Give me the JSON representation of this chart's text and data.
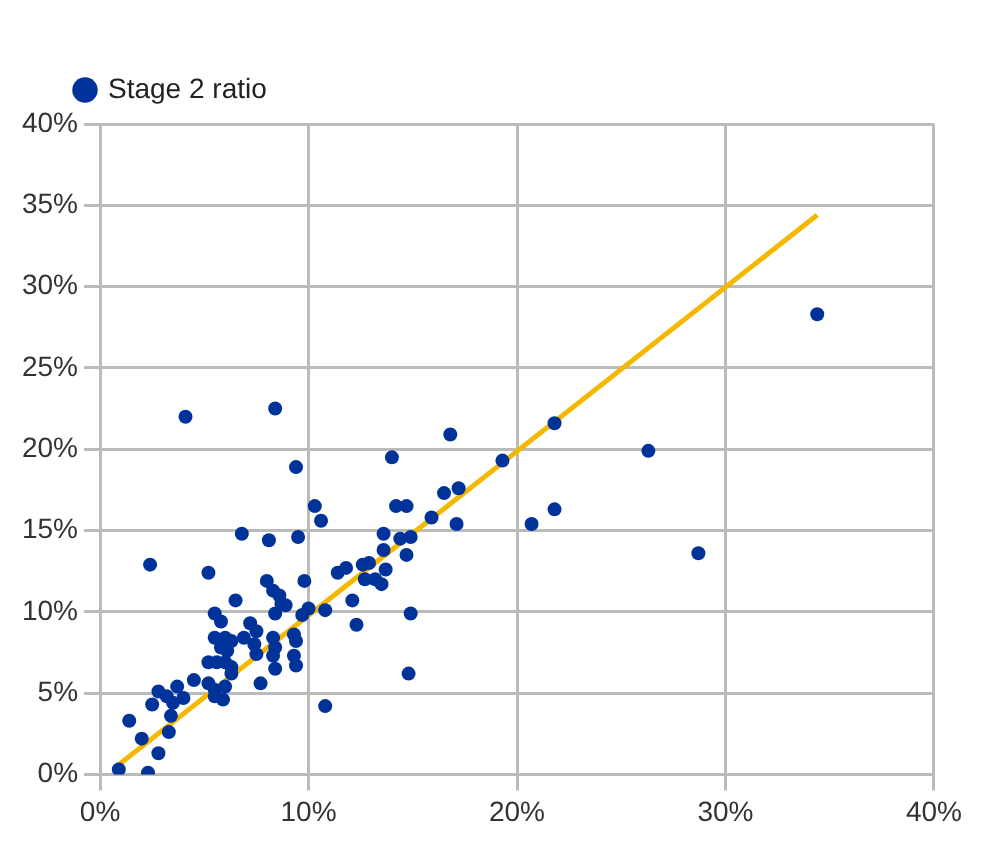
{
  "chart_data": {
    "type": "scatter",
    "legend": "top left",
    "grid": true,
    "marker": "circle",
    "xlim": [
      0,
      40
    ],
    "xticks": [
      {
        "value": 0,
        "label": "0%"
      },
      {
        "value": 10,
        "label": "10%"
      },
      {
        "value": 20,
        "label": "20%"
      },
      {
        "value": 30,
        "label": "30%"
      },
      {
        "value": 40,
        "label": "40%"
      }
    ],
    "ylim": [
      0,
      40
    ],
    "yticks": [
      {
        "value": 0,
        "label": "0%"
      },
      {
        "value": 5,
        "label": "5%"
      },
      {
        "value": 10,
        "label": "10%"
      },
      {
        "value": 15,
        "label": "15%"
      },
      {
        "value": 20,
        "label": "20%"
      },
      {
        "value": 25,
        "label": "25%"
      },
      {
        "value": 30,
        "label": "30%"
      },
      {
        "value": 35,
        "label": "35%"
      },
      {
        "value": 40,
        "label": "40%"
      }
    ],
    "series": [
      {
        "name": "Stage 2 ratio",
        "color": "#003399",
        "x": [
          4.1,
          8.4,
          9.4,
          14.0,
          10.3,
          10.6,
          14.2,
          14.7,
          15.9,
          6.8,
          8.1,
          9.5,
          13.6,
          14.4,
          14.9,
          2.4,
          5.2,
          14.7,
          13.6,
          8.0,
          9.8,
          8.3,
          8.6,
          6.5,
          8.7,
          8.9,
          5.5,
          5.8,
          8.4,
          9.7,
          10.0,
          10.8,
          11.4,
          11.8,
          12.1,
          12.3,
          12.6,
          12.9,
          12.7,
          13.2,
          13.5,
          13.7,
          14.9,
          14.8,
          10.8,
          7.2,
          7.5,
          5.5,
          6.0,
          6.3,
          5.8,
          6.1,
          6.9,
          7.4,
          7.5,
          8.3,
          8.4,
          9.3,
          9.4,
          9.3,
          9.4,
          8.3,
          8.4,
          5.2,
          5.6,
          6.0,
          6.3,
          6.3,
          4.5,
          5.2,
          5.5,
          5.9,
          5.5,
          6.0,
          2.8,
          3.2,
          3.7,
          4.0,
          3.5,
          7.7,
          2.5,
          3.4,
          1.4,
          2.0,
          3.3,
          2.8,
          0.9,
          2.3,
          34.4,
          21.8,
          26.3,
          19.3,
          16.8,
          16.5,
          17.2,
          17.1,
          20.7,
          21.8,
          28.7
        ],
        "values": [
          22.0,
          22.5,
          18.9,
          19.5,
          16.5,
          15.6,
          16.5,
          16.5,
          15.8,
          14.8,
          14.4,
          14.6,
          14.8,
          14.5,
          14.6,
          12.9,
          12.4,
          13.5,
          13.8,
          11.9,
          11.9,
          11.3,
          11.0,
          10.7,
          10.5,
          10.4,
          9.9,
          9.4,
          9.9,
          9.8,
          10.2,
          10.1,
          12.4,
          12.7,
          10.7,
          9.2,
          12.9,
          13.0,
          12.0,
          12.0,
          11.7,
          12.6,
          9.9,
          6.2,
          4.2,
          9.3,
          8.8,
          8.4,
          8.4,
          8.2,
          7.8,
          7.6,
          8.4,
          8.0,
          7.4,
          8.4,
          7.8,
          8.6,
          8.2,
          7.3,
          6.7,
          7.3,
          6.5,
          6.9,
          6.9,
          6.9,
          6.6,
          6.2,
          5.8,
          5.6,
          5.2,
          4.6,
          4.8,
          5.4,
          5.1,
          4.8,
          5.4,
          4.7,
          4.4,
          5.6,
          4.3,
          3.6,
          3.3,
          2.2,
          2.6,
          1.3,
          0.3,
          0.1,
          28.3,
          21.6,
          19.9,
          19.3,
          20.9,
          17.3,
          17.6,
          15.4,
          15.4,
          16.3,
          13.6
        ]
      },
      {
        "type": "line",
        "color": "#f5b800",
        "marker": "none",
        "x": [
          0.9,
          34.4
        ],
        "values": [
          0.6,
          34.4
        ]
      }
    ]
  }
}
